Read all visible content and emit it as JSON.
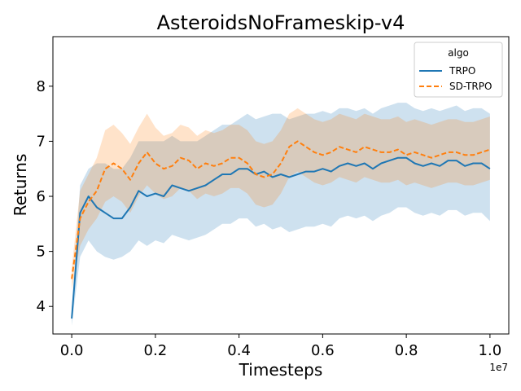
{
  "chart_data": {
    "type": "line",
    "title": "AsteroidsNoFrameskip-v4",
    "xlabel": "Timesteps",
    "ylabel": "Returns",
    "x_offset_label": "1e7",
    "x_scale": 10000000,
    "xlim": [
      -0.45,
      10.45
    ],
    "ylim": [
      3.5,
      8.9
    ],
    "xticks": [
      0,
      2,
      4,
      6,
      8,
      10
    ],
    "xtick_labels": [
      "0.0",
      "0.2",
      "0.4",
      "0.6",
      "0.8",
      "1.0"
    ],
    "yticks": [
      4,
      5,
      6,
      7,
      8
    ],
    "ytick_labels": [
      "4",
      "5",
      "6",
      "7",
      "8"
    ],
    "grid": false,
    "legend": {
      "title": "algo",
      "position": "top-right",
      "entries": [
        "TRPO",
        "SD-TRPO"
      ]
    },
    "x": [
      0.0,
      0.2,
      0.4,
      0.6,
      0.8,
      1.0,
      1.2,
      1.4,
      1.6,
      1.8,
      2.0,
      2.2,
      2.4,
      2.6,
      2.8,
      3.0,
      3.2,
      3.4,
      3.6,
      3.8,
      4.0,
      4.2,
      4.4,
      4.6,
      4.8,
      5.0,
      5.2,
      5.4,
      5.6,
      5.8,
      6.0,
      6.2,
      6.4,
      6.6,
      6.8,
      7.0,
      7.2,
      7.4,
      7.6,
      7.8,
      8.0,
      8.2,
      8.4,
      8.6,
      8.8,
      9.0,
      9.2,
      9.4,
      9.6,
      9.8,
      10.0
    ],
    "series": [
      {
        "name": "TRPO",
        "color": "#1f77b4",
        "dash": "solid",
        "values": [
          3.78,
          5.7,
          6.0,
          5.8,
          5.7,
          5.6,
          5.6,
          5.8,
          6.1,
          6.0,
          6.05,
          6.0,
          6.2,
          6.15,
          6.1,
          6.15,
          6.2,
          6.3,
          6.4,
          6.4,
          6.5,
          6.5,
          6.4,
          6.45,
          6.35,
          6.4,
          6.35,
          6.4,
          6.45,
          6.45,
          6.5,
          6.45,
          6.55,
          6.6,
          6.55,
          6.6,
          6.5,
          6.6,
          6.65,
          6.7,
          6.7,
          6.6,
          6.55,
          6.6,
          6.55,
          6.65,
          6.65,
          6.55,
          6.6,
          6.6,
          6.5
        ],
        "lower": [
          3.65,
          4.9,
          5.2,
          5.0,
          4.9,
          4.85,
          4.9,
          5.0,
          5.2,
          5.1,
          5.2,
          5.15,
          5.3,
          5.25,
          5.2,
          5.25,
          5.3,
          5.4,
          5.5,
          5.5,
          5.6,
          5.6,
          5.45,
          5.5,
          5.4,
          5.45,
          5.35,
          5.4,
          5.45,
          5.45,
          5.5,
          5.45,
          5.6,
          5.65,
          5.6,
          5.65,
          5.55,
          5.65,
          5.7,
          5.8,
          5.8,
          5.7,
          5.65,
          5.7,
          5.65,
          5.75,
          5.75,
          5.65,
          5.7,
          5.7,
          5.55
        ],
        "upper": [
          3.95,
          6.2,
          6.5,
          6.6,
          6.6,
          6.5,
          6.5,
          6.7,
          7.0,
          7.0,
          7.0,
          7.0,
          7.1,
          7.0,
          7.0,
          7.0,
          7.1,
          7.2,
          7.3,
          7.3,
          7.4,
          7.5,
          7.4,
          7.45,
          7.5,
          7.5,
          7.4,
          7.45,
          7.5,
          7.5,
          7.55,
          7.5,
          7.6,
          7.6,
          7.55,
          7.6,
          7.5,
          7.6,
          7.65,
          7.7,
          7.7,
          7.6,
          7.55,
          7.6,
          7.55,
          7.6,
          7.65,
          7.55,
          7.6,
          7.6,
          7.5
        ]
      },
      {
        "name": "SD-TRPO",
        "color": "#ff7f0e",
        "dash": "dashed",
        "values": [
          4.5,
          5.6,
          5.9,
          6.1,
          6.5,
          6.6,
          6.5,
          6.3,
          6.6,
          6.8,
          6.6,
          6.5,
          6.55,
          6.7,
          6.65,
          6.5,
          6.6,
          6.55,
          6.6,
          6.7,
          6.7,
          6.6,
          6.4,
          6.35,
          6.4,
          6.6,
          6.9,
          7.0,
          6.9,
          6.8,
          6.75,
          6.8,
          6.9,
          6.85,
          6.8,
          6.9,
          6.85,
          6.8,
          6.8,
          6.85,
          6.75,
          6.8,
          6.75,
          6.7,
          6.75,
          6.8,
          6.8,
          6.75,
          6.75,
          6.8,
          6.85
        ],
        "lower": [
          4.3,
          5.1,
          5.4,
          5.6,
          5.9,
          6.0,
          5.9,
          5.7,
          6.0,
          6.2,
          6.05,
          5.95,
          6.0,
          6.15,
          6.1,
          5.95,
          6.05,
          6.0,
          6.05,
          6.15,
          6.15,
          6.05,
          5.85,
          5.8,
          5.85,
          6.05,
          6.35,
          6.45,
          6.35,
          6.25,
          6.2,
          6.25,
          6.35,
          6.3,
          6.25,
          6.35,
          6.3,
          6.25,
          6.25,
          6.3,
          6.2,
          6.25,
          6.2,
          6.15,
          6.2,
          6.25,
          6.25,
          6.2,
          6.2,
          6.25,
          6.3
        ],
        "upper": [
          4.7,
          6.1,
          6.4,
          6.7,
          7.2,
          7.3,
          7.15,
          6.95,
          7.25,
          7.5,
          7.25,
          7.1,
          7.15,
          7.3,
          7.25,
          7.1,
          7.2,
          7.15,
          7.2,
          7.3,
          7.3,
          7.2,
          7.0,
          6.95,
          7.0,
          7.2,
          7.5,
          7.6,
          7.5,
          7.4,
          7.35,
          7.4,
          7.5,
          7.45,
          7.4,
          7.5,
          7.45,
          7.4,
          7.4,
          7.45,
          7.35,
          7.4,
          7.35,
          7.3,
          7.35,
          7.4,
          7.4,
          7.35,
          7.35,
          7.4,
          7.45
        ]
      }
    ]
  }
}
